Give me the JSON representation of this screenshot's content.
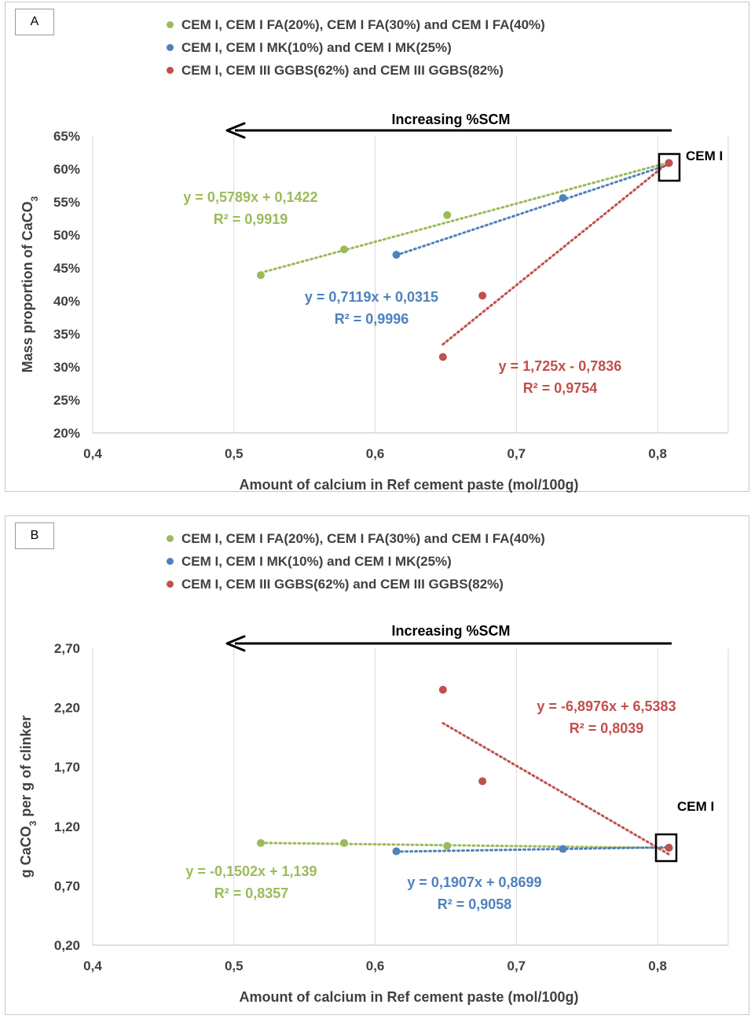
{
  "colors": {
    "green": "#9bbb59",
    "blue": "#4f81bd",
    "red": "#c0504d",
    "grid": "#d9d9d9",
    "text": "#404040"
  },
  "legend": [
    "CEM I, CEM I FA(20%), CEM I FA(30%) and CEM I FA(40%)",
    "CEM I, CEM I MK(10%) and CEM I MK(25%)",
    "CEM I, CEM III GGBS(62%) and CEM III GGBS(82%)"
  ],
  "arrow_label": "Increasing %SCM",
  "cem_label": "CEM I",
  "chart_data": [
    {
      "panel": "A",
      "type": "scatter",
      "xlabel": "Amount of calcium in Ref cement paste (mol/100g)",
      "ylabel": "Mass proportion of CaCO3",
      "xlim": [
        0.4,
        0.85
      ],
      "ylim": [
        0.2,
        0.65
      ],
      "x_ticks": [
        "0,4",
        "0,5",
        "0,6",
        "0,7",
        "0,8"
      ],
      "y_ticks": [
        "20%",
        "25%",
        "30%",
        "35%",
        "40%",
        "45%",
        "50%",
        "55%",
        "60%",
        "65%"
      ],
      "grid": "vertical",
      "series": [
        {
          "name": "CEM I, CEM I FA(20%), CEM I FA(30%) and CEM I FA(40%)",
          "color": "green",
          "x": [
            0.519,
            0.578,
            0.651,
            0.808
          ],
          "y": [
            0.439,
            0.478,
            0.53,
            0.609
          ],
          "trend": {
            "slope": 0.5789,
            "intercept": 0.1422,
            "x_range": [
              0.519,
              0.808
            ]
          },
          "equation": "y = 0,5789x + 0,1422",
          "r2": "R² = 0,9919"
        },
        {
          "name": "CEM I, CEM I MK(10%) and CEM I MK(25%)",
          "color": "blue",
          "x": [
            0.615,
            0.733,
            0.808
          ],
          "y": [
            0.47,
            0.556,
            0.609
          ],
          "trend": {
            "slope": 0.7119,
            "intercept": 0.0315,
            "x_range": [
              0.615,
              0.808
            ]
          },
          "equation": "y = 0,7119x + 0,0315",
          "r2": "R² = 0,9996"
        },
        {
          "name": "CEM I, CEM III GGBS(62%) and CEM III GGBS(82%)",
          "color": "red",
          "x": [
            0.648,
            0.676,
            0.808
          ],
          "y": [
            0.315,
            0.408,
            0.609
          ],
          "trend": {
            "slope": 1.725,
            "intercept": -0.7836,
            "x_range": [
              0.648,
              0.808
            ]
          },
          "equation": "y = 1,725x - 0,7836",
          "r2": "R² = 0,9754"
        }
      ]
    },
    {
      "panel": "B",
      "type": "scatter",
      "xlabel": "Amount of calcium in Ref cement paste (mol/100g)",
      "ylabel": "g CaCO3 per g of clinker",
      "xlim": [
        0.4,
        0.85
      ],
      "ylim": [
        0.2,
        2.7
      ],
      "x_ticks": [
        "0,4",
        "0,5",
        "0,6",
        "0,7",
        "0,8"
      ],
      "y_ticks": [
        "0,20",
        "0,70",
        "1,20",
        "1,70",
        "2,20",
        "2,70"
      ],
      "grid": "vertical",
      "series": [
        {
          "name": "CEM I, CEM I FA(20%), CEM I FA(30%) and CEM I FA(40%)",
          "color": "green",
          "x": [
            0.519,
            0.578,
            0.651,
            0.808
          ],
          "y": [
            1.06,
            1.06,
            1.035,
            1.02
          ],
          "trend": {
            "slope": -0.1502,
            "intercept": 1.139,
            "x_range": [
              0.519,
              0.808
            ]
          },
          "equation": "y = -0,1502x + 1,139",
          "r2": "R² = 0,8357"
        },
        {
          "name": "CEM I, CEM I MK(10%) and CEM I MK(25%)",
          "color": "blue",
          "x": [
            0.615,
            0.733,
            0.808
          ],
          "y": [
            0.99,
            1.01,
            1.02
          ],
          "trend": {
            "slope": 0.1907,
            "intercept": 0.8699,
            "x_range": [
              0.615,
              0.808
            ]
          },
          "equation": "y = 0,1907x + 0,8699",
          "r2": "R² = 0,9058"
        },
        {
          "name": "CEM I, CEM III GGBS(62%) and CEM III GGBS(82%)",
          "color": "red",
          "x": [
            0.648,
            0.676,
            0.808
          ],
          "y": [
            2.35,
            1.58,
            1.02
          ],
          "trend": {
            "slope": -6.8976,
            "intercept": 6.5383,
            "x_range": [
              0.648,
              0.808
            ]
          },
          "equation": "y = -6,8976x + 6,5383",
          "r2": "R² = 0,8039"
        }
      ]
    }
  ]
}
